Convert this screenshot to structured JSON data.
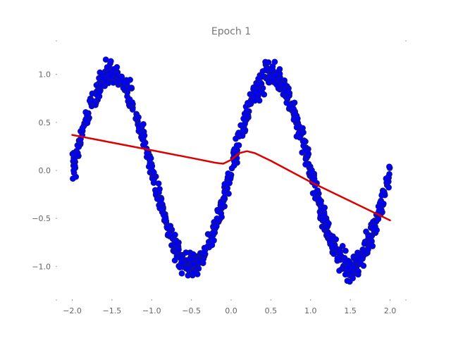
{
  "chart_data": {
    "type": "scatter",
    "title": "Epoch 1",
    "xlabel": "",
    "ylabel": "",
    "xlim": [
      -2.2,
      2.2
    ],
    "ylim": [
      -1.35,
      1.35
    ],
    "x_ticks": [
      -2.0,
      -1.5,
      -1.0,
      -0.5,
      0.0,
      0.5,
      1.0,
      1.5,
      2.0
    ],
    "x_tick_labels": [
      "−2.0",
      "−1.5",
      "−1.0",
      "−0.5",
      "0.0",
      "0.5",
      "1.0",
      "1.5",
      "2.0"
    ],
    "y_ticks": [
      -1.0,
      -0.5,
      0.0,
      0.5,
      1.0
    ],
    "y_tick_labels": [
      "−1.0",
      "−0.5",
      "0.0",
      "0.5",
      "1.0"
    ],
    "grid": false,
    "series": [
      {
        "kind": "scatter",
        "color": "#0000ff",
        "edge_color": "#1a1a6e",
        "x_range": [
          -2.0,
          2.0
        ],
        "noise_std": 0.06,
        "note_shape": "noisy sine: y = sin(pi * x)"
      },
      {
        "kind": "line",
        "color": "#dd0000",
        "x": [
          -2.0,
          -1.5,
          -1.0,
          -0.5,
          -0.2,
          -0.1,
          0.0,
          0.1,
          0.2,
          0.3,
          0.5,
          1.0,
          1.5,
          2.0
        ],
        "y": [
          0.37,
          0.29,
          0.21,
          0.13,
          0.08,
          0.07,
          0.11,
          0.18,
          0.2,
          0.18,
          0.1,
          -0.12,
          -0.32,
          -0.52
        ]
      }
    ]
  }
}
